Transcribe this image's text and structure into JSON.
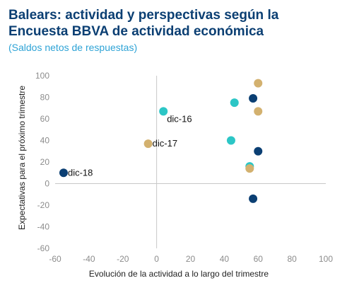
{
  "header": {
    "title_line1": "Balears: actividad y perspectivas según la",
    "title_line2": "Encuesta BBVA de actividad económica",
    "subtitle": "(Saldos netos de respuestas)"
  },
  "chart_data": {
    "type": "scatter",
    "xlabel": "Evolución de la actividad a lo largo del trimestre",
    "ylabel": "Expectativas para el próximo trimestre",
    "xlim": [
      -60,
      100
    ],
    "ylim": [
      -60,
      100
    ],
    "xticks": [
      -60,
      -40,
      -20,
      0,
      20,
      40,
      60,
      80,
      100
    ],
    "yticks": [
      -60,
      -40,
      -20,
      0,
      20,
      40,
      60,
      80,
      100
    ],
    "grid": false,
    "legend": "none",
    "points": [
      {
        "x": -55,
        "y": 10,
        "color": "#0b3f73",
        "label": "dic-18"
      },
      {
        "x": -5,
        "y": 37,
        "color": "#d3b16f",
        "label": "dic-17"
      },
      {
        "x": 4,
        "y": 67,
        "color": "#2cc6c6",
        "label": "dic-16"
      },
      {
        "x": 46,
        "y": 75,
        "color": "#2cc6c6",
        "label": ""
      },
      {
        "x": 44,
        "y": 40,
        "color": "#2cc6c6",
        "label": ""
      },
      {
        "x": 55,
        "y": 16,
        "color": "#2cc6c6",
        "label": ""
      },
      {
        "x": 55,
        "y": 14,
        "color": "#d3b16f",
        "label": ""
      },
      {
        "x": 57,
        "y": 79,
        "color": "#0b3f73",
        "label": ""
      },
      {
        "x": 60,
        "y": 93,
        "color": "#d3b16f",
        "label": ""
      },
      {
        "x": 60,
        "y": 67,
        "color": "#d3b16f",
        "label": ""
      },
      {
        "x": 60,
        "y": 30,
        "color": "#0b3f73",
        "label": ""
      },
      {
        "x": 57,
        "y": -14,
        "color": "#0b3f73",
        "label": ""
      }
    ]
  }
}
